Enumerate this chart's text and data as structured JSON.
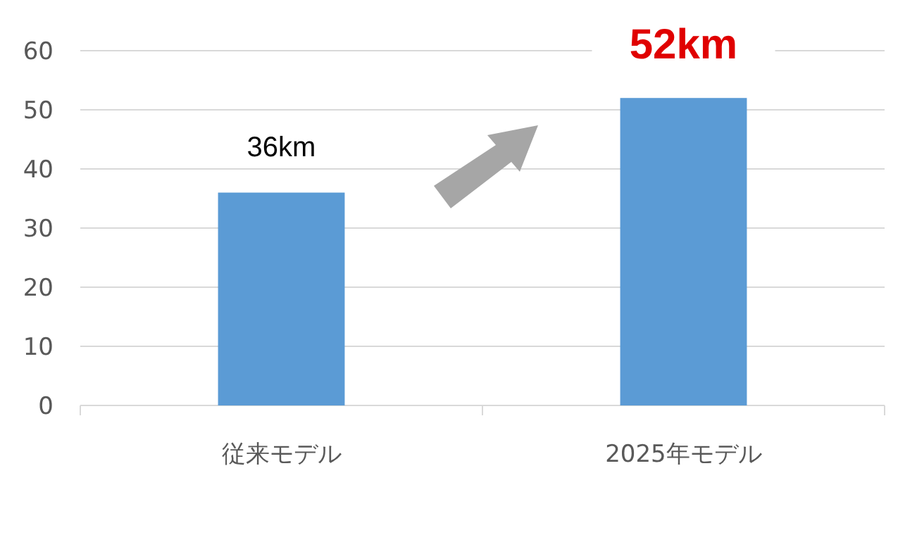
{
  "chart_data": {
    "type": "bar",
    "categories": [
      "従来モデル",
      "2025年モデル"
    ],
    "values": [
      36,
      52
    ],
    "color": "#5b9bd5",
    "value_labels": [
      "36km",
      "52km"
    ],
    "ylim": [
      0,
      60
    ],
    "yticks": [
      0,
      10,
      20,
      30,
      40,
      50,
      60
    ],
    "grid": "y"
  }
}
